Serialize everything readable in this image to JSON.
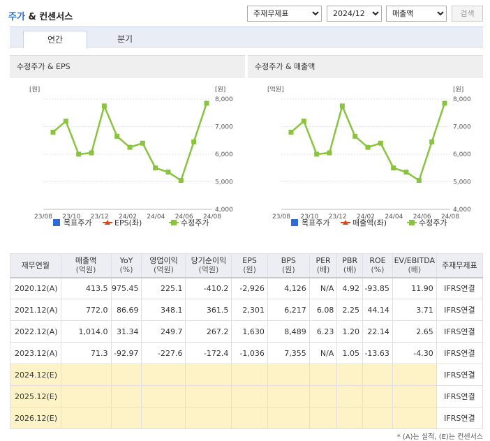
{
  "title": {
    "main": "주가",
    "rest": " & 컨센서스"
  },
  "controls": {
    "subject_select": "주재무제표",
    "period_select": "2024/12",
    "metric_select": "매출액",
    "search_button": "검색"
  },
  "tabs": [
    {
      "label": "연간"
    },
    {
      "label": "분기"
    }
  ],
  "charts": [
    {
      "title": "수정주가 & EPS",
      "left_unit": "[원]",
      "right_unit": "[원]",
      "legend": [
        {
          "label": "목표주가",
          "color": "#2f6bd6"
        },
        {
          "label": "EPS(좌)",
          "color": "#d9481c"
        },
        {
          "label": "수정주가",
          "color": "#8ac43f"
        }
      ]
    },
    {
      "title": "수정주가 & 매출액",
      "left_unit": "[억원]",
      "right_unit": "[원]",
      "legend": [
        {
          "label": "목표주가",
          "color": "#2f6bd6"
        },
        {
          "label": "매출액(좌)",
          "color": "#d9481c"
        },
        {
          "label": "수정주가",
          "color": "#8ac43f"
        }
      ]
    }
  ],
  "chart_data": [
    {
      "type": "line",
      "title": "수정주가 & EPS",
      "x_ticks": [
        "23/08",
        "23/10",
        "23/12",
        "24/02",
        "24/04",
        "24/06",
        "24/08"
      ],
      "y_right_ticks": [
        "8,000",
        "7,000",
        "6,000",
        "5,000",
        "4,000"
      ],
      "ylim": [
        4000,
        8000
      ],
      "series": [
        {
          "name": "수정주가",
          "color": "#8ac43f",
          "values": [
            6800,
            7200,
            6000,
            6050,
            7750,
            6650,
            6250,
            6400,
            5500,
            5350,
            5050,
            6450,
            7850
          ]
        }
      ]
    },
    {
      "type": "line",
      "title": "수정주가 & 매출액",
      "x_ticks": [
        "23/08",
        "23/10",
        "23/12",
        "24/02",
        "24/04",
        "24/06",
        "24/08"
      ],
      "y_right_ticks": [
        "8,000",
        "7,000",
        "6,000",
        "5,000",
        "4,000"
      ],
      "ylim": [
        4000,
        8000
      ],
      "series": [
        {
          "name": "수정주가",
          "color": "#8ac43f",
          "values": [
            6800,
            7200,
            6000,
            6050,
            7750,
            6650,
            6250,
            6400,
            5500,
            5350,
            5050,
            6450,
            7850
          ]
        }
      ]
    }
  ],
  "table": {
    "headers": [
      {
        "l1": "재무연월",
        "l2": ""
      },
      {
        "l1": "매출액",
        "l2": "(억원)"
      },
      {
        "l1": "YoY",
        "l2": "(%)"
      },
      {
        "l1": "영업이익",
        "l2": "(억원)"
      },
      {
        "l1": "당기순이익",
        "l2": "(억원)"
      },
      {
        "l1": "EPS",
        "l2": "(원)"
      },
      {
        "l1": "BPS",
        "l2": "(원)"
      },
      {
        "l1": "PER",
        "l2": "(배)"
      },
      {
        "l1": "PBR",
        "l2": "(배)"
      },
      {
        "l1": "ROE",
        "l2": "(%)"
      },
      {
        "l1": "EV/EBITDA",
        "l2": "(배)"
      },
      {
        "l1": "주재무제표",
        "l2": ""
      }
    ],
    "rows": [
      {
        "period": "2020.12(A)",
        "cells": [
          "413.5",
          "975.45",
          "225.1",
          "-410.2",
          "-2,926",
          "4,126",
          "N/A",
          "4.92",
          "-93.85",
          "11.90"
        ],
        "note": "IFRS연결"
      },
      {
        "period": "2021.12(A)",
        "cells": [
          "772.0",
          "86.69",
          "348.1",
          "361.5",
          "2,301",
          "6,217",
          "6.08",
          "2.25",
          "44.14",
          "3.71"
        ],
        "note": "IFRS연결"
      },
      {
        "period": "2022.12(A)",
        "cells": [
          "1,014.0",
          "31.34",
          "249.7",
          "267.2",
          "1,630",
          "8,489",
          "6.23",
          "1.20",
          "22.14",
          "2.65"
        ],
        "note": "IFRS연결"
      },
      {
        "period": "2023.12(A)",
        "cells": [
          "71.3",
          "-92.97",
          "-227.6",
          "-172.4",
          "-1,036",
          "7,355",
          "N/A",
          "1.05",
          "-13.63",
          "-4.30"
        ],
        "note": "IFRS연결"
      },
      {
        "period": "2024.12(E)",
        "cells": [
          "",
          "",
          "",
          "",
          "",
          "",
          "",
          "",
          "",
          ""
        ],
        "note": "IFRS연결",
        "estimate": true
      },
      {
        "period": "2025.12(E)",
        "cells": [
          "",
          "",
          "",
          "",
          "",
          "",
          "",
          "",
          "",
          ""
        ],
        "note": "IFRS연결",
        "estimate": true
      },
      {
        "period": "2026.12(E)",
        "cells": [
          "",
          "",
          "",
          "",
          "",
          "",
          "",
          "",
          "",
          ""
        ],
        "note": "IFRS연결",
        "estimate": true
      }
    ]
  },
  "footnote": "* (A)는 실적, (E)는 컨센서스"
}
